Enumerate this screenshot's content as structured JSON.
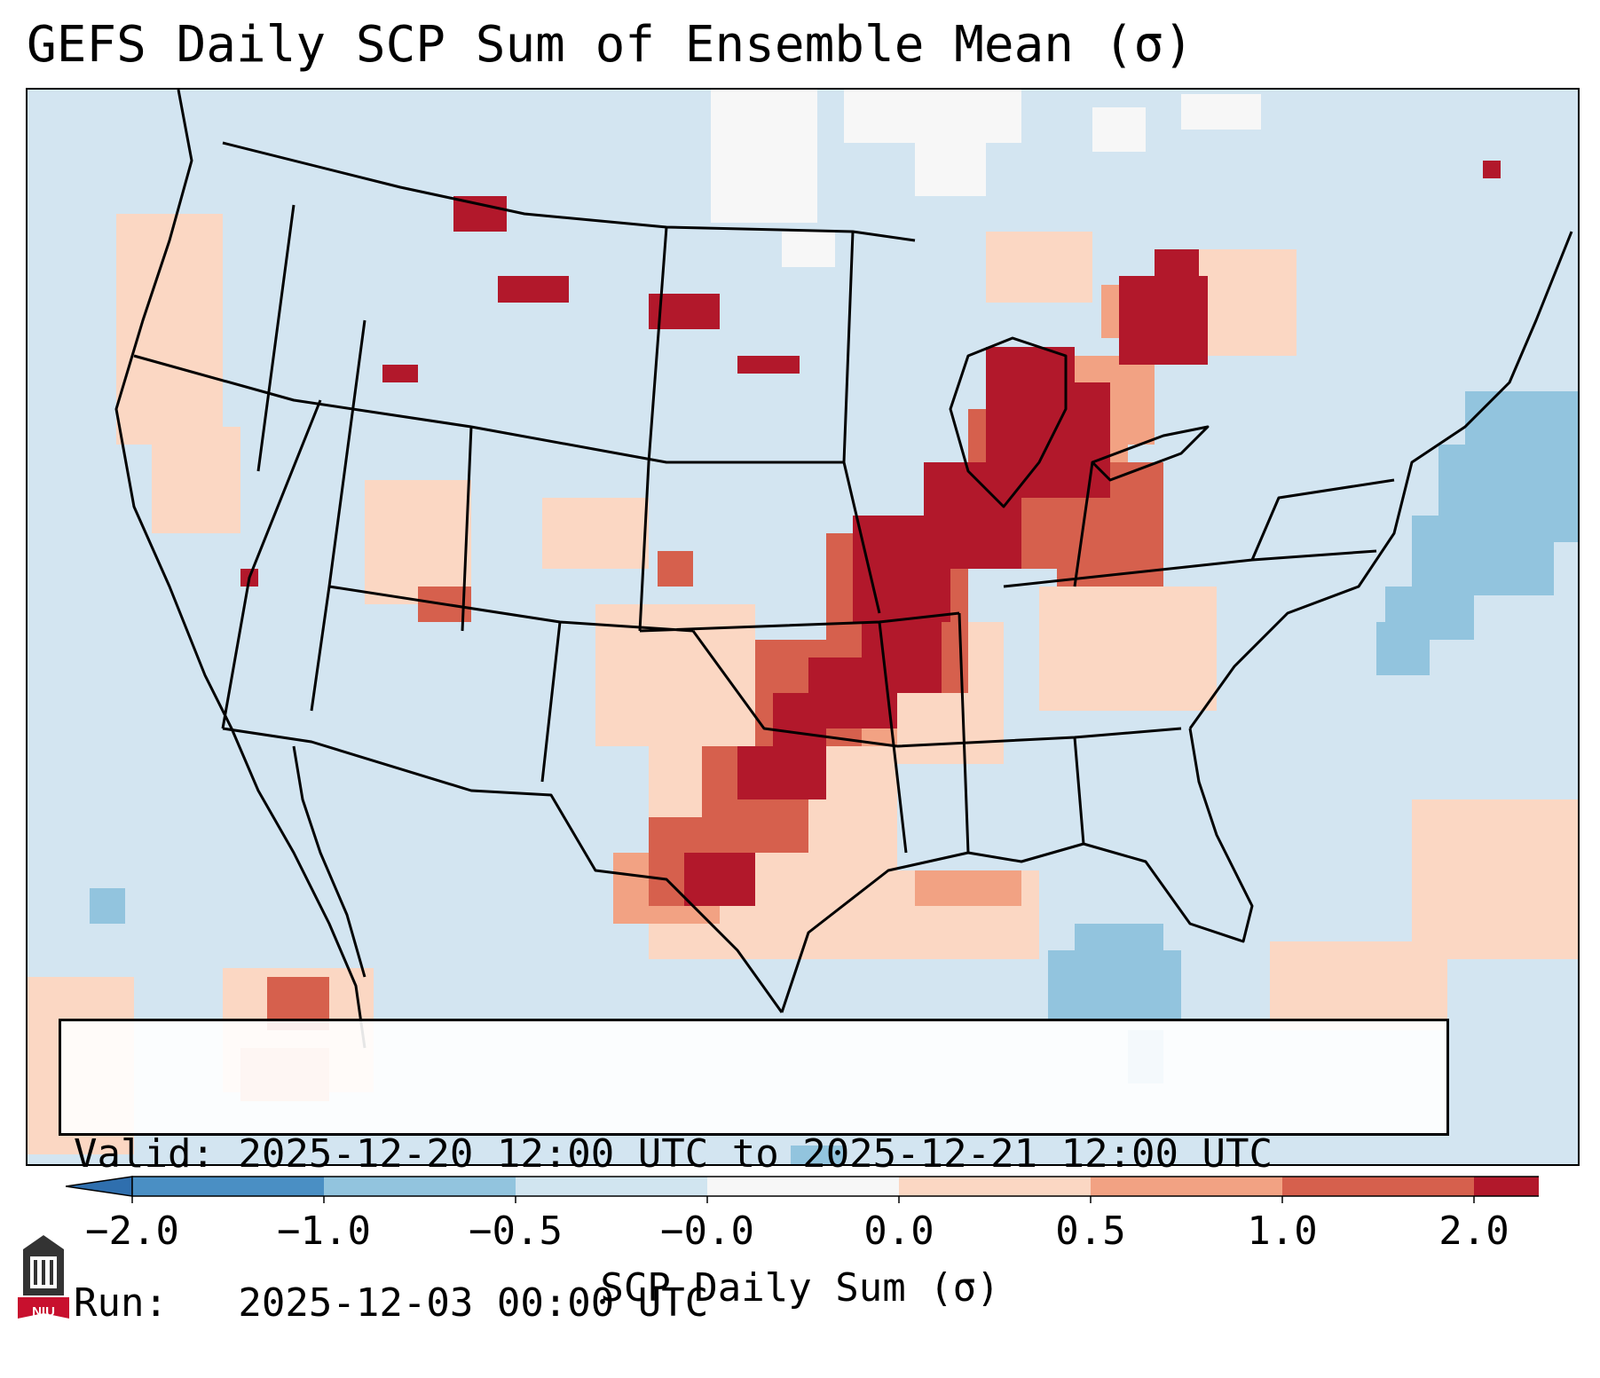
{
  "title": "GEFS Daily SCP Sum of Ensemble Mean (σ)",
  "info": {
    "valid_line": "Valid: 2025-12-20 12:00 UTC to 2025-12-21 12:00 UTC",
    "run_line": "Run:   2025-12-03 00:00 UTC"
  },
  "colorbar": {
    "label": "SCP Daily Sum (σ)",
    "ticks": [
      "−2.0",
      "−1.0",
      "−0.5",
      "−0.0",
      "0.0",
      "0.5",
      "1.0",
      "2.0"
    ],
    "colors": [
      "#4a8fc4",
      "#92c4de",
      "#d1e5f0",
      "#f7f7f7",
      "#fbd7c3",
      "#f2a283",
      "#d6604d",
      "#b2182b"
    ],
    "extend": "both"
  },
  "legend_classes": [
    {
      "range": "< -2.0",
      "color": "#2f6fae"
    },
    {
      "range": "-2.0 to -1.0",
      "color": "#4a8fc4"
    },
    {
      "range": "-1.0 to -0.5",
      "color": "#92c4de"
    },
    {
      "range": "-0.5 to -0.0",
      "color": "#d1e5f0"
    },
    {
      "range": "0.0 to 0.5",
      "color": "#fbd7c3"
    },
    {
      "range": "0.5 to 1.0",
      "color": "#f2a283"
    },
    {
      "range": "1.0 to 2.0",
      "color": "#d6604d"
    },
    {
      "range": "> 2.0",
      "color": "#b2182b"
    }
  ],
  "logo_text": "NIU"
}
